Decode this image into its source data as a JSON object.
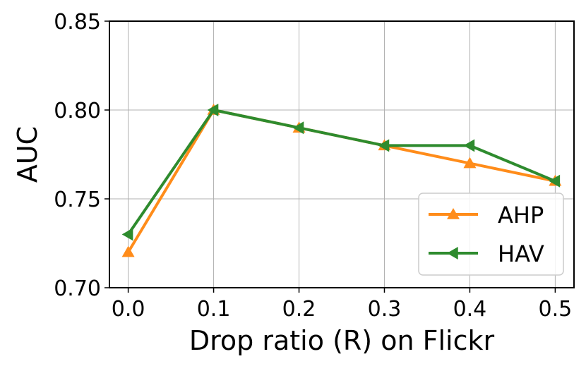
{
  "chart_data": {
    "type": "line",
    "title": "",
    "xlabel": "Drop ratio (R) on Flickr",
    "ylabel": "AUC",
    "x": [
      0.0,
      0.1,
      0.2,
      0.3,
      0.4,
      0.5
    ],
    "x_tick_labels": [
      "0.0",
      "0.1",
      "0.2",
      "0.3",
      "0.4",
      "0.5"
    ],
    "y_tick_labels": [
      "0.70",
      "0.75",
      "0.80",
      "0.85"
    ],
    "xlim": [
      -0.022,
      0.522
    ],
    "ylim": [
      0.7,
      0.85
    ],
    "y_ticks": [
      0.7,
      0.75,
      0.8,
      0.85
    ],
    "grid": true,
    "legend_position": "bottom-right",
    "series": [
      {
        "name": "AHP",
        "marker": "triangle-up",
        "color": "#ff8c1a",
        "values": [
          0.72,
          0.8,
          0.79,
          0.78,
          0.77,
          0.76
        ]
      },
      {
        "name": "HAV",
        "marker": "triangle-left",
        "color": "#2e8b2e",
        "values": [
          0.73,
          0.8,
          0.79,
          0.78,
          0.78,
          0.76
        ]
      }
    ]
  }
}
